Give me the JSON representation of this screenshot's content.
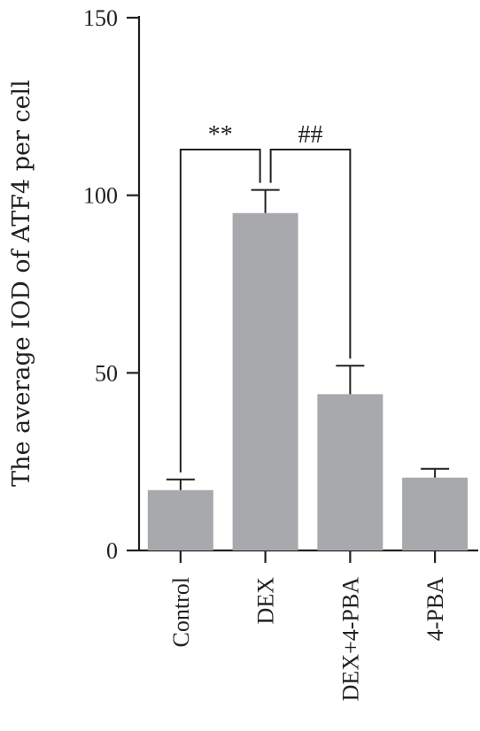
{
  "chart_data": {
    "type": "bar",
    "title": "",
    "xlabel": "",
    "ylabel": "The average IOD of ATF4 per cell",
    "categories": [
      "Control",
      "DEX",
      "DEX+4-PBA",
      "4-PBA"
    ],
    "values": [
      17,
      95,
      44,
      20.5
    ],
    "errors": [
      3,
      6.5,
      8,
      2.5
    ],
    "ylim": [
      0,
      150
    ],
    "yticks": [
      0,
      50,
      100,
      150
    ],
    "grid": false,
    "bar_color": "#a7a9ac",
    "axis_color": "#231f20",
    "significance": [
      {
        "from": "Control",
        "to": "DEX",
        "label": "**"
      },
      {
        "from": "DEX",
        "to": "DEX+4-PBA",
        "label": "##"
      }
    ]
  }
}
